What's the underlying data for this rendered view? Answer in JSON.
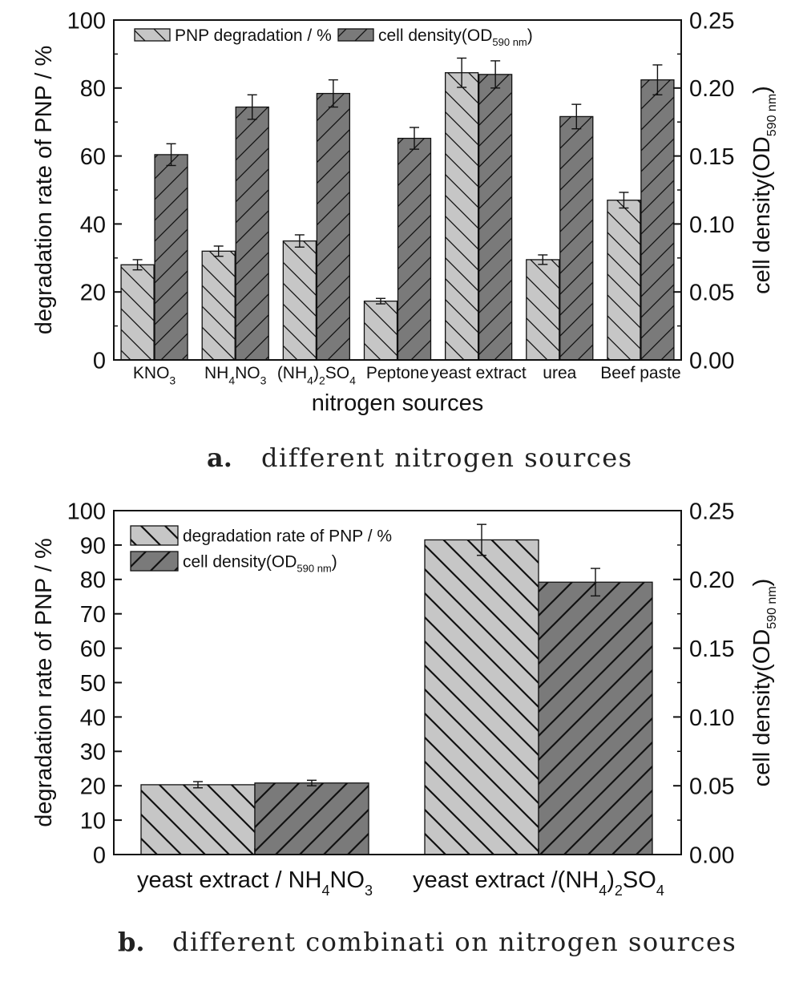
{
  "colors": {
    "light_bar": "#c6c6c6",
    "dark_bar": "#7a7a7a",
    "stroke": "#111111"
  },
  "captions": {
    "a_letter": "a.",
    "a_text": "different nitrogen sources",
    "b_letter": "b.",
    "b_text": "different combinati on nitrogen sources"
  },
  "chart_data": [
    {
      "type": "bar",
      "xlabel": "nitrogen sources",
      "ylabel": "degradation rate of PNP / %",
      "y2label": {
        "main": "cell density(OD",
        "sub": "590 nm",
        "end": ")"
      },
      "ylim": [
        0,
        100
      ],
      "y2lim": [
        0,
        0.25
      ],
      "yticks": [
        "0",
        "20",
        "40",
        "60",
        "80",
        "100"
      ],
      "y2ticks": [
        "0.00",
        "0.05",
        "0.10",
        "0.15",
        "0.20",
        "0.25"
      ],
      "legend_position": "top-left",
      "categories": [
        {
          "parts": [
            [
              "KNO",
              ""
            ],
            [
              "3",
              "sub"
            ]
          ]
        },
        {
          "parts": [
            [
              "NH",
              ""
            ],
            [
              "4",
              "sub"
            ],
            [
              "NO",
              ""
            ],
            [
              "3",
              "sub"
            ]
          ]
        },
        {
          "parts": [
            [
              "(NH",
              ""
            ],
            [
              "4",
              "sub"
            ],
            [
              ")",
              ""
            ],
            [
              "2",
              "sub"
            ],
            [
              "SO",
              ""
            ],
            [
              "4",
              "sub"
            ]
          ]
        },
        {
          "parts": [
            [
              "Peptone",
              ""
            ]
          ]
        },
        {
          "parts": [
            [
              "yeast extract",
              ""
            ]
          ]
        },
        {
          "parts": [
            [
              "urea",
              ""
            ]
          ]
        },
        {
          "parts": [
            [
              "Beef paste",
              ""
            ]
          ]
        }
      ],
      "series": [
        {
          "name": "PNP degradation / %",
          "axis": "left",
          "pattern": "backslash",
          "values": [
            28,
            32,
            35,
            17.3,
            84.5,
            29.5,
            47
          ],
          "errors": [
            1.5,
            1.5,
            1.8,
            0.8,
            4.3,
            1.4,
            2.3
          ]
        },
        {
          "name": "cell density(OD",
          "name_sub": "590 nm",
          "name_end": ")",
          "axis": "right",
          "pattern": "slash",
          "values": [
            0.151,
            0.186,
            0.196,
            0.163,
            0.21,
            0.179,
            0.206
          ],
          "errors": [
            0.008,
            0.009,
            0.01,
            0.008,
            0.01,
            0.009,
            0.011
          ]
        }
      ]
    },
    {
      "type": "bar",
      "ylabel": "degradation rate of PNP / %",
      "y2label": {
        "main": "cell density(OD",
        "sub": "590 nm",
        "end": ")"
      },
      "ylim": [
        0,
        100
      ],
      "y2lim": [
        0,
        0.25
      ],
      "yticks": [
        "0",
        "10",
        "20",
        "30",
        "40",
        "50",
        "60",
        "70",
        "80",
        "90",
        "100"
      ],
      "y2ticks": [
        "0.00",
        "0.05",
        "0.10",
        "0.15",
        "0.20",
        "0.25"
      ],
      "legend_position": "top-left",
      "categories": [
        {
          "parts": [
            [
              "yeast extract / NH",
              ""
            ],
            [
              "4",
              "sub"
            ],
            [
              "NO",
              ""
            ],
            [
              "3",
              "sub"
            ]
          ]
        },
        {
          "parts": [
            [
              "yeast extract /(NH",
              ""
            ],
            [
              "4",
              "sub"
            ],
            [
              ")",
              ""
            ],
            [
              "2",
              "sub"
            ],
            [
              "SO",
              ""
            ],
            [
              "4",
              "sub"
            ]
          ]
        }
      ],
      "series": [
        {
          "name": "degradation rate of PNP / %",
          "axis": "left",
          "pattern": "backslash",
          "values": [
            20.3,
            91.5
          ],
          "errors": [
            0.9,
            4.5
          ]
        },
        {
          "name": "cell density(OD",
          "name_sub": "590 nm",
          "name_end": ")",
          "axis": "right",
          "pattern": "slash",
          "values": [
            0.052,
            0.198
          ],
          "errors": [
            0.002,
            0.01
          ]
        }
      ]
    }
  ]
}
